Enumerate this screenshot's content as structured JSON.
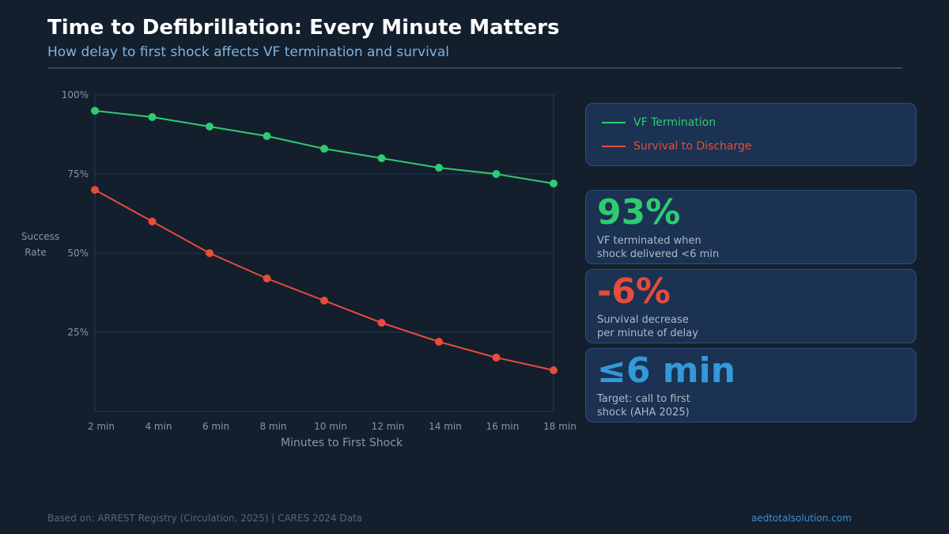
{
  "header": {
    "title": "Time to Defibrillation: Every Minute Matters",
    "subtitle": "How delay to first shock affects VF termination and survival"
  },
  "chart_data": {
    "type": "line",
    "title": "",
    "xlabel": "Minutes to First Shock",
    "ylabel_lines": [
      "Success",
      "Rate"
    ],
    "categories": [
      "2 min",
      "4 min",
      "6 min",
      "8 min",
      "10 min",
      "12 min",
      "14 min",
      "16 min",
      "18 min"
    ],
    "ylim": [
      0,
      100
    ],
    "yticks": [
      25,
      50,
      75,
      100
    ],
    "ytick_labels": [
      "25%",
      "50%",
      "75%",
      "100%"
    ],
    "grid": true,
    "legend_placement": "right",
    "series": [
      {
        "name": "VF Termination",
        "color": "#2ecc71",
        "values": [
          95,
          93,
          90,
          87,
          83,
          80,
          77,
          75,
          72
        ]
      },
      {
        "name": "Survival to Discharge",
        "color": "#e74c3c",
        "values": [
          70,
          60,
          50,
          42,
          35,
          28,
          22,
          17,
          13
        ]
      }
    ]
  },
  "stats": [
    {
      "value": "93%",
      "color": "#2ecc71",
      "lines": [
        "VF terminated when",
        "shock delivered <6 min"
      ]
    },
    {
      "value": "-6%",
      "color": "#e74c3c",
      "lines": [
        "Survival decrease",
        "per minute of delay"
      ]
    },
    {
      "value": "≤6 min",
      "color": "#3498db",
      "lines": [
        "Target: call to first",
        "shock (AHA 2025)"
      ]
    }
  ],
  "footer": {
    "source": "Based on: ARREST Registry (Circulation, 2025) | CARES 2024 Data",
    "site": "aedtotalsolution.com"
  }
}
